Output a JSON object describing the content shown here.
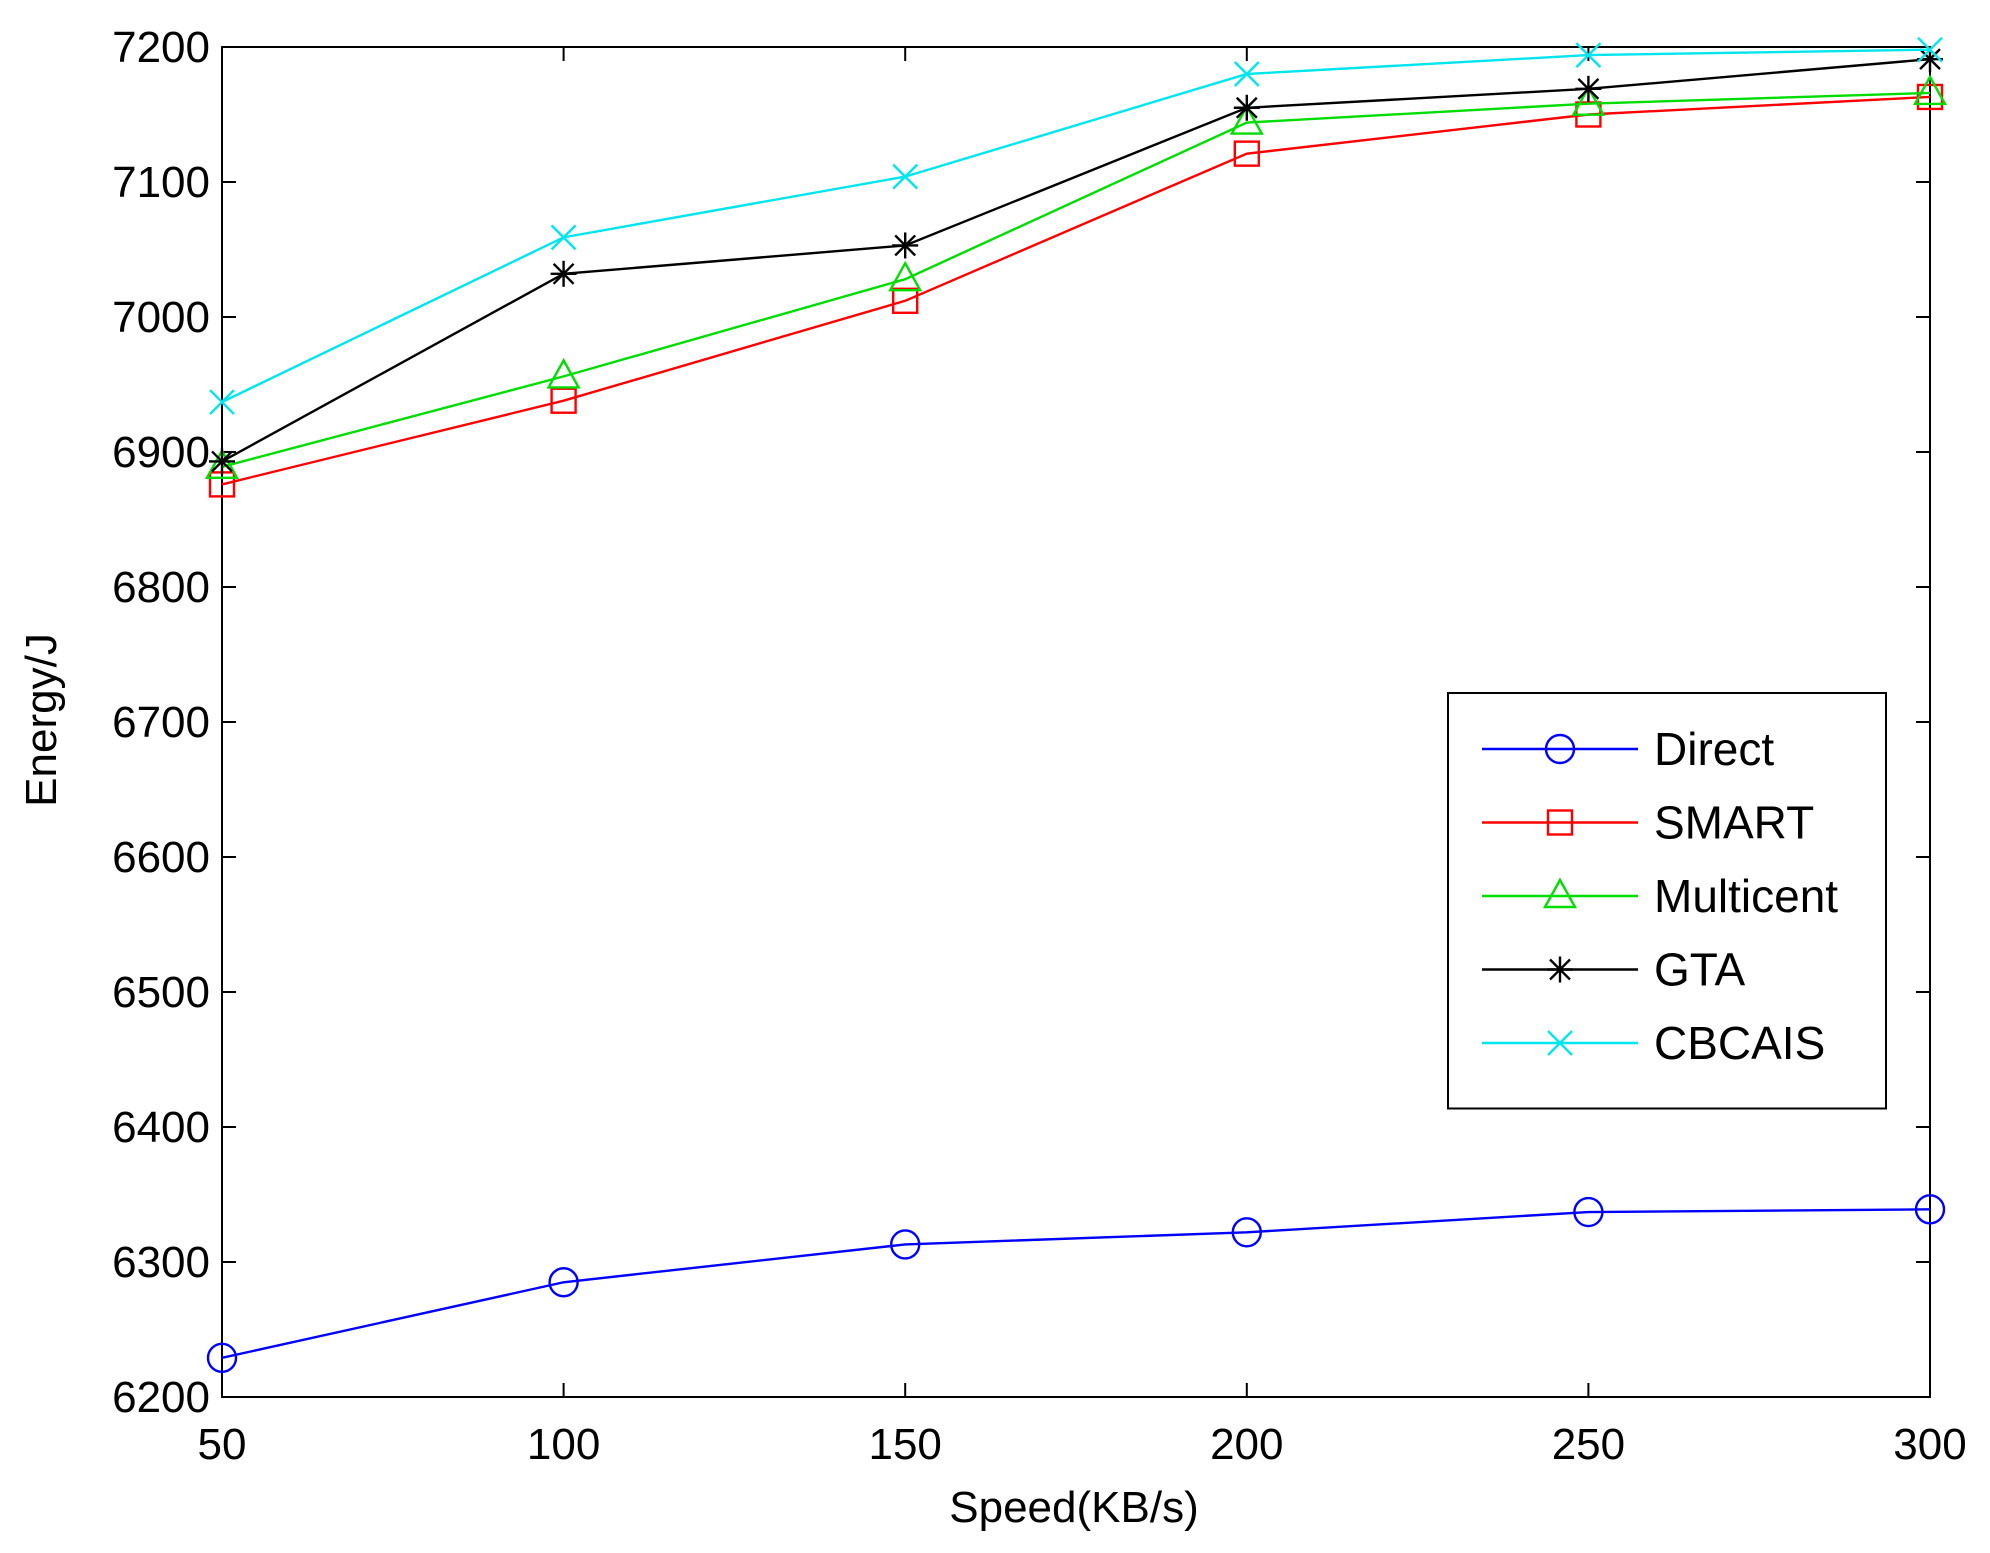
{
  "chart_data": {
    "type": "line",
    "title": "",
    "xlabel": "Speed(KB/s)",
    "ylabel": "Energy/J",
    "x": [
      50,
      100,
      150,
      200,
      250,
      300
    ],
    "xlim": [
      50,
      300
    ],
    "ylim": [
      6200,
      7200
    ],
    "xticks": [
      50,
      100,
      150,
      200,
      250,
      300
    ],
    "yticks": [
      6200,
      6300,
      6400,
      6500,
      6600,
      6700,
      6800,
      6900,
      7000,
      7100,
      7200
    ],
    "grid": false,
    "legend_position": "center-right",
    "series": [
      {
        "name": "Direct",
        "color": "#0000ff",
        "marker": "circle",
        "values": [
          6229,
          6285,
          6313,
          6322,
          6337,
          6339
        ]
      },
      {
        "name": "SMART",
        "color": "#ff0000",
        "marker": "square",
        "values": [
          6876,
          6938,
          7012,
          7121,
          7150,
          7163
        ]
      },
      {
        "name": "Multicent",
        "color": "#00dd00",
        "marker": "triangle",
        "values": [
          6889,
          6956,
          7028,
          7144,
          7158,
          7166
        ]
      },
      {
        "name": "GTA",
        "color": "#000000",
        "marker": "star",
        "values": [
          6893,
          7032,
          7053,
          7155,
          7169,
          7191
        ]
      },
      {
        "name": "CBCAIS",
        "color": "#00e5ee",
        "marker": "x",
        "values": [
          6937,
          7059,
          7104,
          7180,
          7194,
          7198
        ]
      }
    ]
  }
}
